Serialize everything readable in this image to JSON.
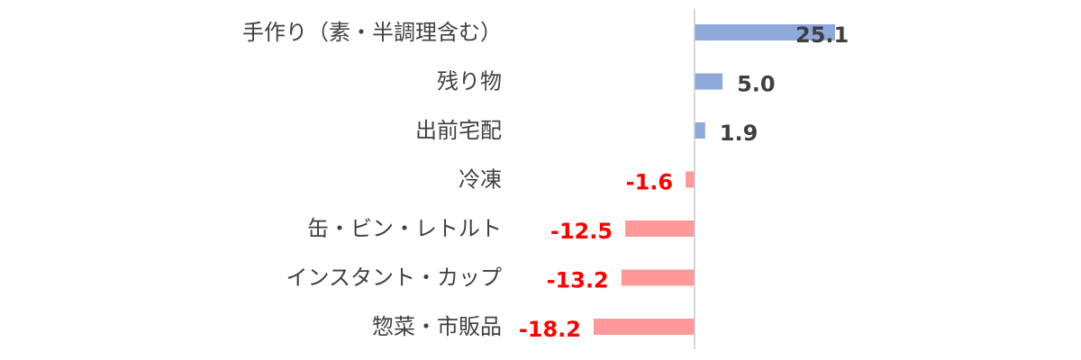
{
  "chart_data": {
    "type": "bar",
    "orientation": "horizontal",
    "categories": [
      "手作り（素・半調理含む）",
      "残り物",
      "出前宅配",
      "冷凍",
      "缶・ビン・レトルト",
      "インスタント・カップ",
      "惣菜・市販品"
    ],
    "values": [
      25.1,
      5.0,
      1.9,
      -1.6,
      -12.5,
      -13.2,
      -18.2
    ],
    "value_labels": [
      "25.1",
      "5.0",
      "1.9",
      "-1.6",
      "-12.5",
      "-13.2",
      "-18.2"
    ],
    "title": "",
    "xlabel": "",
    "ylabel": "",
    "xlim": [
      -18.2,
      25.1
    ],
    "grid": false,
    "legend": "none",
    "colors": {
      "positive_bar": "#8eaadb",
      "negative_bar": "#ff9999",
      "positive_label": "#404040",
      "negative_label": "#ff0000",
      "axis": "#c8c8c8",
      "category_label": "#404040"
    }
  }
}
